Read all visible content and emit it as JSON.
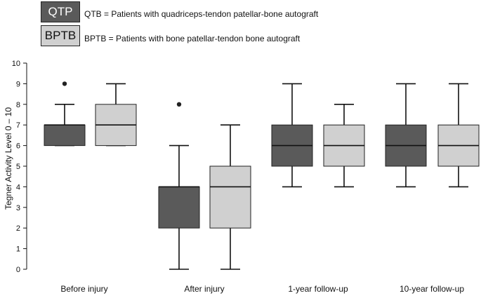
{
  "legend": {
    "qtp_label": "QTP",
    "qtp_text": "QTB = Patients with quadriceps-tendon patellar-bone autograft",
    "bptb_label": "BPTB",
    "bptb_text": "BPTB = Patients with bone patellar-tendon bone autograft"
  },
  "chart_data": {
    "type": "box",
    "title": "",
    "xlabel": "",
    "ylabel": "Tegner Activity Level  0 – 10",
    "ylim": [
      0,
      10
    ],
    "yticks": [
      0,
      1,
      2,
      3,
      4,
      5,
      6,
      7,
      8,
      9,
      10
    ],
    "grid": false,
    "legend_position": "top-left",
    "categories": [
      "Before injury",
      "After injury",
      "1-year follow-up",
      "10-year follow-up"
    ],
    "series": [
      {
        "name": "QTP",
        "color": "#5a5a5a",
        "boxes": [
          {
            "min": 6,
            "q1": 6,
            "median": 7,
            "q3": 7,
            "max": 8,
            "outliers": [
              9
            ]
          },
          {
            "min": 0,
            "q1": 2,
            "median": 4,
            "q3": 4,
            "max": 6,
            "outliers": [
              8
            ]
          },
          {
            "min": 4,
            "q1": 5,
            "median": 6,
            "q3": 7,
            "max": 9,
            "outliers": []
          },
          {
            "min": 4,
            "q1": 5,
            "median": 6,
            "q3": 7,
            "max": 9,
            "outliers": []
          }
        ]
      },
      {
        "name": "BPTB",
        "color": "#d0d0d0",
        "boxes": [
          {
            "min": 6,
            "q1": 6,
            "median": 7,
            "q3": 8,
            "max": 9,
            "outliers": []
          },
          {
            "min": 0,
            "q1": 2,
            "median": 4,
            "q3": 5,
            "max": 7,
            "outliers": []
          },
          {
            "min": 4,
            "q1": 5,
            "median": 6,
            "q3": 7,
            "max": 8,
            "outliers": []
          },
          {
            "min": 4,
            "q1": 5,
            "median": 6,
            "q3": 7,
            "max": 9,
            "outliers": []
          }
        ]
      }
    ]
  }
}
